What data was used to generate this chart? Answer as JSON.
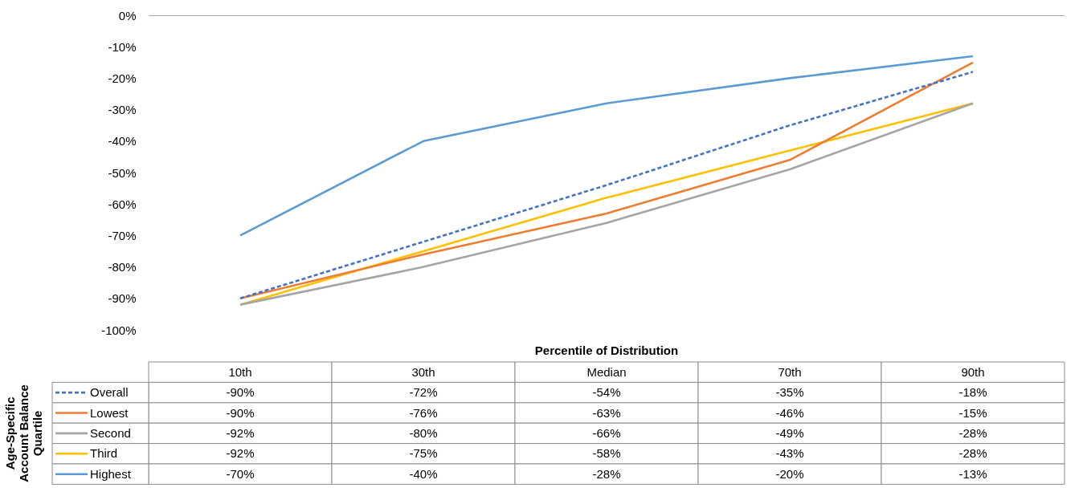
{
  "chart_data": {
    "type": "line",
    "xlabel": "Percentile of Distribution",
    "legend_title": "Age-Specific\nAccount Balance\nQuartile",
    "legend": "bottom",
    "tick_labels": "y",
    "grid": false,
    "categories": [
      "10th",
      "30th",
      "Median",
      "70th",
      "90th"
    ],
    "ylim": [
      -100,
      0
    ],
    "yticks": [
      {
        "value": 0,
        "label": "0%"
      },
      {
        "value": -10,
        "label": "-10%"
      },
      {
        "value": -20,
        "label": "-20%"
      },
      {
        "value": -30,
        "label": "-30%"
      },
      {
        "value": -40,
        "label": "-40%"
      },
      {
        "value": -50,
        "label": "-50%"
      },
      {
        "value": -60,
        "label": "-60%"
      },
      {
        "value": -70,
        "label": "-70%"
      },
      {
        "value": -80,
        "label": "-80%"
      },
      {
        "value": -90,
        "label": "-90%"
      },
      {
        "value": -100,
        "label": "-100%"
      }
    ],
    "series": [
      {
        "name": "Overall",
        "color": "#4472c4",
        "line_style": "dashed",
        "values": [
          -90,
          -72,
          -54,
          -35,
          -18
        ],
        "value_labels": [
          "-90%",
          "-72%",
          "-54%",
          "-35%",
          "-18%"
        ]
      },
      {
        "name": "Lowest",
        "color": "#ed7d31",
        "line_style": "solid",
        "values": [
          -90,
          -76,
          -63,
          -46,
          -15
        ],
        "value_labels": [
          "-90%",
          "-76%",
          "-63%",
          "-46%",
          "-15%"
        ]
      },
      {
        "name": "Second",
        "color": "#a5a5a5",
        "line_style": "solid",
        "values": [
          -92,
          -80,
          -66,
          -49,
          -28
        ],
        "value_labels": [
          "-92%",
          "-80%",
          "-66%",
          "-49%",
          "-28%"
        ]
      },
      {
        "name": "Third",
        "color": "#ffc000",
        "line_style": "solid",
        "values": [
          -92,
          -75,
          -58,
          -43,
          -28
        ],
        "value_labels": [
          "-92%",
          "-75%",
          "-58%",
          "-43%",
          "-28%"
        ]
      },
      {
        "name": "Highest",
        "color": "#5b9bd5",
        "line_style": "solid",
        "values": [
          -70,
          -40,
          -28,
          -20,
          -13
        ],
        "value_labels": [
          "-70%",
          "-40%",
          "-28%",
          "-20%",
          "-13%"
        ]
      }
    ]
  }
}
